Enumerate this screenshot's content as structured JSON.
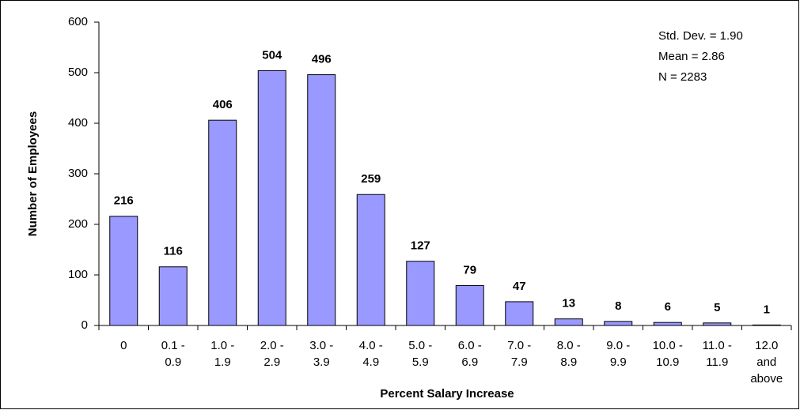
{
  "chart_data": {
    "type": "bar",
    "x_label": "Percent Salary Increase",
    "y_label": "Number of Employees",
    "categories": [
      [
        "0"
      ],
      [
        "0.1 -",
        "0.9"
      ],
      [
        "1.0 -",
        "1.9"
      ],
      [
        "2.0 -",
        "2.9"
      ],
      [
        "3.0 -",
        "3.9"
      ],
      [
        "4.0 -",
        "4.9"
      ],
      [
        "5.0 -",
        "5.9"
      ],
      [
        "6.0 -",
        "6.9"
      ],
      [
        "7.0 -",
        "7.9"
      ],
      [
        "8.0 -",
        "8.9"
      ],
      [
        "9.0 -",
        "9.9"
      ],
      [
        "10.0 -",
        "10.9"
      ],
      [
        "11.0 -",
        "11.9"
      ],
      [
        "12.0",
        "and",
        "above"
      ]
    ],
    "values": [
      216,
      116,
      406,
      504,
      496,
      259,
      127,
      79,
      47,
      13,
      8,
      6,
      5,
      1
    ],
    "color": "#9999ff",
    "ylim": [
      0,
      600
    ],
    "yticks": [
      0,
      100,
      200,
      300,
      400,
      500,
      600
    ],
    "annotations": [
      "Std. Dev. = 1.90",
      "Mean = 2.86",
      "N = 2283"
    ]
  }
}
